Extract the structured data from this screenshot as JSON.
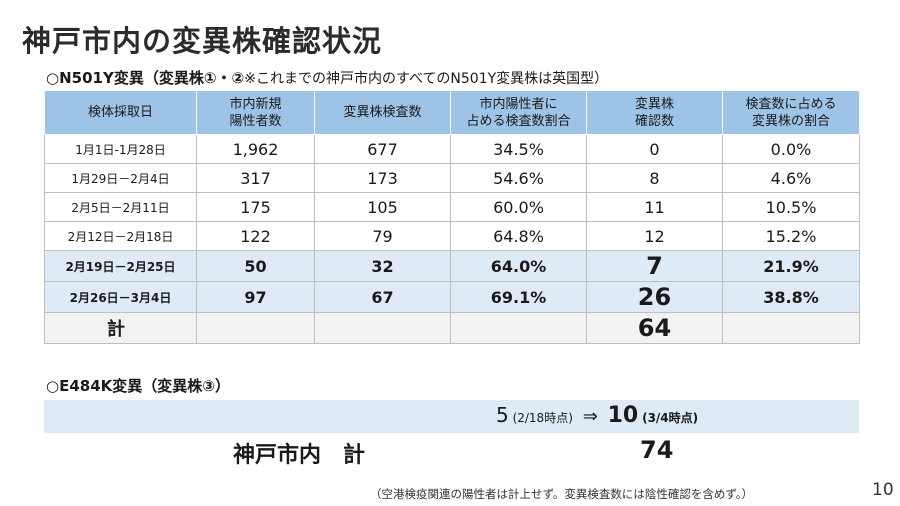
{
  "title": "神戸市内の変異株確認状況",
  "n501y": {
    "heading": "○N501Y変異（変異株①・②",
    "note": "※これまでの神戸市内のすべてのN501Y変異株は英国型）"
  },
  "table": {
    "headers": [
      {
        "line1": "検体採取日",
        "line2": ""
      },
      {
        "line1": "市内新規",
        "line2": "陽性者数"
      },
      {
        "line1": "変異株検査数",
        "line2": ""
      },
      {
        "line1": "市内陽性者に",
        "line2": "占める検査数割合"
      },
      {
        "line1": "変異株",
        "line2": "確認数"
      },
      {
        "line1": "検査数に占める",
        "line2": "変異株の割合"
      }
    ],
    "rows": [
      [
        "1月1日-1月28日",
        "1,962",
        "677",
        "34.5%",
        "0",
        "0.0%"
      ],
      [
        "1月29日－2月4日",
        "317",
        "173",
        "54.6%",
        "8",
        "4.6%"
      ],
      [
        "2月5日－2月11日",
        "175",
        "105",
        "60.0%",
        "11",
        "10.5%"
      ],
      [
        "2月12日－2月18日",
        "122",
        "79",
        "64.8%",
        "12",
        "15.2%"
      ],
      [
        "2月19日－2月25日",
        "50",
        "32",
        "64.0%",
        "7",
        "21.9%"
      ],
      [
        "2月26日－3月4日",
        "97",
        "67",
        "69.1%",
        "26",
        "38.8%"
      ]
    ],
    "total_label": "計",
    "total_value": "64"
  },
  "e484k": {
    "heading": "○E484K変異（変異株③）",
    "prev_value": "5",
    "prev_note": "(2/18時点)",
    "arrow": "⇒",
    "cur_value": "10",
    "cur_note": "(3/4時点)"
  },
  "grand": {
    "label": "神戸市内　計",
    "value": "74"
  },
  "footnote": "（空港検疫関連の陽性者は計上せず。変異検査数には陰性確認を含めず。）",
  "page_number": "10"
}
